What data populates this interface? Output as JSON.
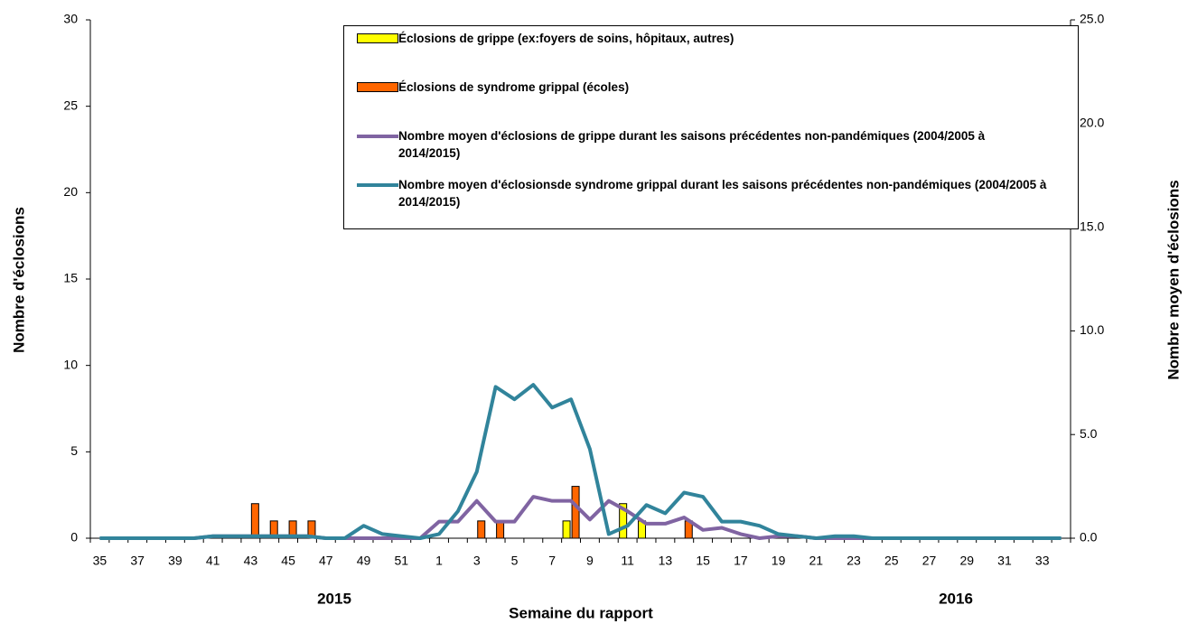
{
  "chart_data": {
    "type": "combo",
    "x_label": "Semaine du rapport",
    "y_label": "Nombre d'éclosions",
    "y2_label": "Nombre moyen d'éclosions",
    "annotations": [
      "2015",
      "2016"
    ],
    "categories": [
      "35",
      null,
      "37",
      null,
      "39",
      null,
      "41",
      null,
      "43",
      null,
      "45",
      null,
      "47",
      null,
      "49",
      null,
      "51",
      null,
      "1",
      null,
      "3",
      null,
      "5",
      null,
      "7",
      null,
      "9",
      null,
      "11",
      null,
      "13",
      null,
      "15",
      null,
      "17",
      null,
      "19",
      null,
      "21",
      null,
      "23",
      null,
      "25",
      null,
      "27",
      null,
      "29",
      null,
      "31",
      null,
      "33",
      null
    ],
    "ylim": [
      0,
      30
    ],
    "yticks": [
      0,
      5,
      10,
      15,
      20,
      25,
      30
    ],
    "y2lim": [
      0,
      25
    ],
    "y2ticks": [
      {
        "value": 0,
        "label": "0.0"
      },
      {
        "value": 5,
        "label": "5.0"
      },
      {
        "value": 10,
        "label": "10.0"
      },
      {
        "value": 15,
        "label": "15.0"
      },
      {
        "value": 20,
        "label": "20.0"
      },
      {
        "value": 25,
        "label": "25.0"
      }
    ],
    "series": [
      {
        "name": "Éclosions de grippe (ex:foyers de soins, hôpitaux, autres)",
        "type": "bar",
        "color": "#ffff00",
        "values": [
          0,
          0,
          0,
          0,
          0,
          0,
          0,
          0,
          0,
          0,
          0,
          0,
          0,
          0,
          0,
          0,
          0,
          0,
          0,
          0,
          0,
          0,
          0,
          0,
          0,
          1,
          0,
          0,
          2,
          1,
          0,
          0,
          0,
          0,
          0,
          0,
          0,
          0,
          0,
          0,
          0,
          0,
          0,
          0,
          0,
          0,
          0,
          0,
          0,
          0,
          0,
          0
        ]
      },
      {
        "name": "Éclosions de syndrome grippal (écoles)",
        "type": "bar",
        "color": "#ff6600",
        "values": [
          0,
          0,
          0,
          0,
          0,
          0,
          0,
          0,
          2,
          1,
          1,
          1,
          0,
          0,
          0,
          0,
          0,
          0,
          0,
          0,
          1,
          1,
          0,
          0,
          0,
          3,
          0,
          0,
          0,
          0,
          0,
          1,
          0,
          0,
          0,
          0,
          0,
          0,
          0,
          0,
          0,
          0,
          0,
          0,
          0,
          0,
          0,
          0,
          0,
          0,
          0,
          0
        ]
      },
      {
        "name": "Nombre moyen d'éclosions de grippe durant les saisons précédentes non-pandémiques (2004/2005 à 2014/2015)",
        "type": "line",
        "axis": "y2",
        "color": "#8064a2",
        "values": [
          0,
          0,
          0,
          0,
          0,
          0,
          0.1,
          0.1,
          0.1,
          0.1,
          0.1,
          0.1,
          0,
          0,
          0,
          0,
          0,
          0,
          0.8,
          0.8,
          1.8,
          0.8,
          0.8,
          2.0,
          1.8,
          1.8,
          0.9,
          1.8,
          1.3,
          0.7,
          0.7,
          1.0,
          0.4,
          0.5,
          0.2,
          0,
          0.1,
          0.1,
          0,
          0,
          0,
          0,
          0,
          0,
          0,
          0,
          0,
          0,
          0,
          0,
          0,
          0
        ]
      },
      {
        "name": "Nombre moyen d'éclosionsde syndrome grippal  durant les saisons précédentes non-pandémiques (2004/2005 à 2014/2015)",
        "type": "line",
        "axis": "y2",
        "color": "#31849b",
        "values": [
          0,
          0,
          0,
          0,
          0,
          0,
          0.1,
          0.1,
          0.1,
          0.1,
          0.1,
          0.1,
          0,
          0,
          0.6,
          0.2,
          0.1,
          0,
          0.2,
          1.3,
          3.2,
          7.3,
          6.7,
          7.4,
          6.3,
          6.7,
          4.3,
          0.2,
          0.6,
          1.6,
          1.2,
          2.2,
          2.0,
          0.8,
          0.8,
          0.6,
          0.2,
          0.1,
          0,
          0.1,
          0.1,
          0,
          0,
          0,
          0,
          0,
          0,
          0,
          0,
          0,
          0,
          0
        ]
      }
    ]
  }
}
